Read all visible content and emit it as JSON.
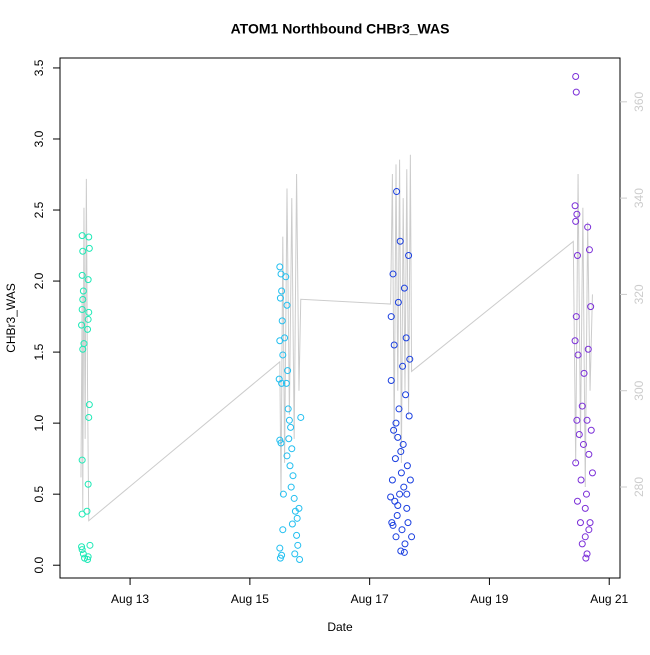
{
  "chart_data": {
    "type": "scatter",
    "title": "ATOM1 Northbound CHBr3_WAS",
    "x_label": "Date",
    "y_label": "CHBr3_WAS",
    "xlim": [
      11.83,
      21.18
    ],
    "xticks": [
      {
        "value": 13,
        "label": "Aug 13"
      },
      {
        "value": 15,
        "label": "Aug 15"
      },
      {
        "value": 17,
        "label": "Aug 17"
      },
      {
        "value": 19,
        "label": "Aug 19"
      },
      {
        "value": 21,
        "label": "Aug 21"
      }
    ],
    "ylim": [
      -0.09,
      3.57
    ],
    "yticks": [
      {
        "value": 0,
        "label": "0.0"
      },
      0.5,
      {
        "value": 1,
        "label": "1.0"
      },
      1.5,
      {
        "value": 2,
        "label": "2.0"
      },
      2.5,
      {
        "value": 3,
        "label": "3.0"
      },
      3.5
    ],
    "y2lim": [
      261.1,
      369.1
    ],
    "y2ticks": [
      280,
      300,
      320,
      340,
      360
    ],
    "y2_tick_color": "#cccccc",
    "series": [
      {
        "color": "#1de9b6",
        "x": [
          12.2,
          12.21,
          12.2,
          12.22,
          12.21,
          12.2,
          12.19,
          12.23,
          12.21,
          12.2,
          12.2,
          12.19,
          12.22,
          12.24,
          12.2,
          12.31,
          12.32,
          12.3,
          12.31,
          12.3,
          12.29,
          12.32,
          12.31,
          12.3,
          12.28,
          12.33,
          12.3,
          12.29
        ],
        "values": [
          2.32,
          2.21,
          2.04,
          1.93,
          1.87,
          1.8,
          1.69,
          1.56,
          1.52,
          0.74,
          0.36,
          0.13,
          0.08,
          0.05,
          0.11,
          2.31,
          2.23,
          2.01,
          1.78,
          1.73,
          1.66,
          1.13,
          1.04,
          0.57,
          0.38,
          0.14,
          0.06,
          0.04
        ]
      },
      {
        "color": "#22bff0",
        "x": [
          15.5,
          15.52,
          15.53,
          15.51,
          15.54,
          15.5,
          15.55,
          15.49,
          15.53,
          15.5,
          15.52,
          15.56,
          15.55,
          15.5,
          15.51,
          15.53,
          15.6,
          15.62,
          15.58,
          15.63,
          15.61,
          15.64,
          15.66,
          15.68,
          15.65,
          15.7,
          15.62,
          15.67,
          15.72,
          15.69,
          15.74,
          15.76,
          15.71,
          15.78,
          15.8,
          15.75,
          15.83,
          15.85,
          15.82,
          15.79
        ],
        "values": [
          2.1,
          2.05,
          1.93,
          1.88,
          1.72,
          1.58,
          1.48,
          1.31,
          1.28,
          0.88,
          0.86,
          0.5,
          0.25,
          0.12,
          0.05,
          0.07,
          2.03,
          1.83,
          1.6,
          1.37,
          1.28,
          1.1,
          1.02,
          0.97,
          0.89,
          0.82,
          0.77,
          0.7,
          0.63,
          0.55,
          0.47,
          0.38,
          0.29,
          0.21,
          0.14,
          0.08,
          0.04,
          1.04,
          0.4,
          0.33
        ]
      },
      {
        "color": "#1a3fe0",
        "x": [
          17.35,
          17.37,
          17.36,
          17.38,
          17.4,
          17.39,
          17.42,
          17.41,
          17.44,
          17.43,
          17.45,
          17.47,
          17.46,
          17.48,
          17.5,
          17.49,
          17.52,
          17.51,
          17.53,
          17.55,
          17.54,
          17.56,
          17.58,
          17.57,
          17.59,
          17.6,
          17.62,
          17.61,
          17.63,
          17.65,
          17.64,
          17.66,
          17.68,
          17.67,
          17.7,
          17.36,
          17.44,
          17.52,
          17.58,
          17.62,
          17.47,
          17.39
        ],
        "values": [
          0.48,
          0.3,
          1.3,
          0.6,
          0.95,
          2.05,
          0.45,
          1.55,
          0.2,
          0.75,
          2.63,
          0.9,
          0.35,
          1.85,
          0.5,
          1.1,
          0.1,
          2.28,
          0.65,
          1.4,
          0.25,
          0.85,
          1.95,
          0.55,
          0.15,
          1.2,
          0.4,
          1.6,
          0.7,
          2.18,
          0.3,
          1.05,
          0.6,
          1.45,
          0.2,
          1.75,
          1.0,
          0.8,
          0.09,
          0.5,
          0.42,
          0.28
        ]
      },
      {
        "color": "#7b2fd8",
        "x": [
          20.44,
          20.45,
          20.43,
          20.46,
          20.44,
          20.47,
          20.45,
          20.43,
          20.48,
          20.46,
          20.44,
          20.47,
          20.5,
          20.52,
          20.55,
          20.53,
          20.57,
          20.6,
          20.58,
          20.62,
          20.61,
          20.64,
          20.63,
          20.66,
          20.65,
          20.68,
          20.67,
          20.7,
          20.69,
          20.72,
          20.55,
          20.6,
          20.63,
          20.66
        ],
        "values": [
          3.44,
          3.33,
          2.53,
          2.47,
          2.42,
          2.18,
          1.75,
          1.58,
          1.48,
          1.02,
          0.72,
          0.45,
          0.92,
          0.3,
          1.12,
          0.6,
          0.85,
          0.2,
          1.35,
          0.5,
          0.05,
          2.38,
          1.02,
          0.78,
          1.52,
          0.3,
          2.22,
          0.95,
          1.82,
          0.65,
          0.15,
          0.4,
          0.08,
          0.25
        ]
      },
      {
        "type": "line",
        "axis": "y2",
        "color": "#cccccc",
        "x": [
          12.18,
          12.2,
          12.21,
          12.23,
          12.25,
          12.27,
          12.29,
          12.31,
          15.5,
          15.52,
          15.55,
          15.58,
          15.62,
          15.66,
          15.7,
          15.74,
          15.78,
          15.82,
          15.85,
          17.35,
          17.38,
          17.41,
          17.44,
          17.47,
          17.5,
          17.53,
          17.56,
          17.59,
          17.62,
          17.65,
          17.68,
          17.7,
          20.4,
          20.44,
          20.48,
          20.52,
          20.56,
          20.6,
          20.64,
          20.68,
          20.72
        ],
        "values": [
          282,
          320,
          275,
          338,
          290,
          344,
          300,
          273,
          306,
          278,
          332,
          285,
          342,
          295,
          340,
          290,
          345,
          300,
          319,
          318,
          345,
          290,
          347,
          300,
          348,
          285,
          340,
          300,
          346,
          295,
          349,
          304,
          331,
          285,
          345,
          290,
          338,
          280,
          335,
          300,
          320
        ]
      }
    ]
  }
}
